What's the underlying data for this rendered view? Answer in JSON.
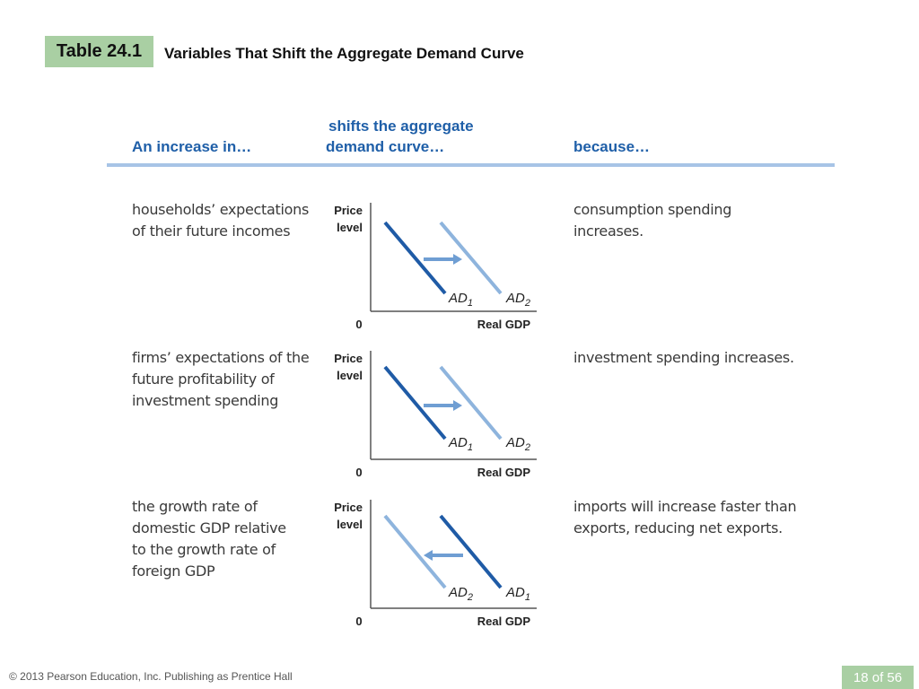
{
  "header": {
    "table_label": "Table 24.1",
    "title": "Variables That Shift the Aggregate Demand Curve"
  },
  "columns": {
    "increase": "An increase in…",
    "shift_line1": "shifts the aggregate",
    "shift_line2": "demand curve…",
    "because": "because…"
  },
  "rows": [
    {
      "increase_lines": [
        "households’ expectations",
        "of their future incomes"
      ],
      "because_lines": [
        "consumption spending",
        "increases."
      ],
      "graph": {
        "y_label_1": "Price",
        "y_label_2": "level",
        "origin": "0",
        "x_label": "Real GDP",
        "left_curve": "AD",
        "left_sub": "1",
        "right_curve": "AD",
        "right_sub": "2",
        "shift_direction": "right"
      }
    },
    {
      "increase_lines": [
        "firms’ expectations of the",
        "future profitability of",
        "investment spending"
      ],
      "because_lines": [
        "investment spending increases."
      ],
      "graph": {
        "y_label_1": "Price",
        "y_label_2": "level",
        "origin": "0",
        "x_label": "Real GDP",
        "left_curve": "AD",
        "left_sub": "1",
        "right_curve": "AD",
        "right_sub": "2",
        "shift_direction": "right"
      }
    },
    {
      "increase_lines": [
        "the growth rate of",
        "domestic GDP relative",
        "to the growth rate of",
        "foreign GDP"
      ],
      "because_lines": [
        "imports will increase faster than",
        "exports, reducing net exports."
      ],
      "graph": {
        "y_label_1": "Price",
        "y_label_2": "level",
        "origin": "0",
        "x_label": "Real GDP",
        "left_curve": "AD",
        "left_sub": "2",
        "right_curve": "AD",
        "right_sub": "1",
        "shift_direction": "left"
      }
    }
  ],
  "footer": {
    "copyright": "© 2013 Pearson Education, Inc. Publishing as Prentice Hall",
    "page": "18 of 56"
  },
  "colors": {
    "badge_green": "#a9cfa3",
    "heading_blue": "#1f5fa8",
    "rule_blue": "#a7c4e6",
    "curve_dark": "#1f5ba6",
    "curve_light": "#8eb4dd"
  }
}
